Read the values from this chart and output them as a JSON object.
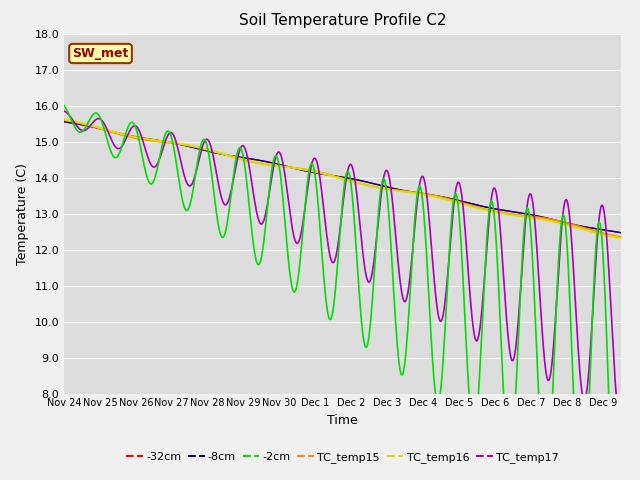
{
  "title": "Soil Temperature Profile C2",
  "xlabel": "Time",
  "ylabel": "Temperature (C)",
  "ylim": [
    8.0,
    18.0
  ],
  "yticks": [
    8.0,
    9.0,
    10.0,
    11.0,
    12.0,
    13.0,
    14.0,
    15.0,
    16.0,
    17.0,
    18.0
  ],
  "annotation_text": "SW_met",
  "plot_bg_color": "#dcdcdc",
  "fig_bg_color": "#f0f0f0",
  "line_colors": {
    "-32cm": "#ff0000",
    "-8cm": "#000099",
    "-2cm": "#00dd00",
    "TC_temp15": "#ff8800",
    "TC_temp16": "#dddd00",
    "TC_temp17": "#aa00bb"
  },
  "legend_labels": [
    "-32cm",
    "-8cm",
    "-2cm",
    "TC_temp15",
    "TC_temp16",
    "TC_temp17"
  ],
  "xtick_labels": [
    "Nov 24",
    "Nov 25",
    "Nov 26",
    "Nov 27",
    "Nov 28",
    "Nov 29",
    "Nov 30",
    "Dec 1",
    "Dec 2",
    "Dec 3",
    "Dec 4",
    "Dec 5",
    "Dec 6",
    "Dec 7",
    "Dec 8",
    "Dec 9"
  ],
  "n_points": 1500,
  "days": 15.5,
  "title_fontsize": 11,
  "axis_fontsize": 9,
  "tick_fontsize": 8
}
